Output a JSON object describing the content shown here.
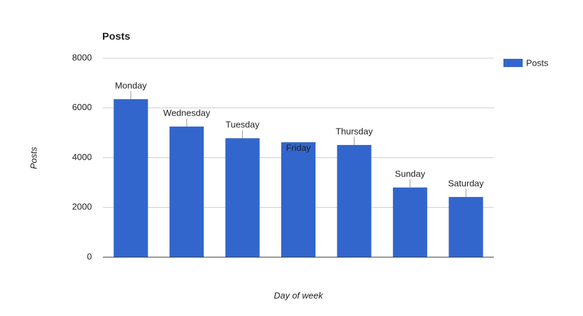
{
  "chart_data": {
    "type": "bar",
    "title": "Posts",
    "x_label": "Day of week",
    "y_label": "Posts",
    "categories": [
      "Monday",
      "Wednesday",
      "Tuesday",
      "Friday",
      "Thursday",
      "Sunday",
      "Saturday"
    ],
    "series": [
      {
        "name": "Posts",
        "color": "#3366cc",
        "values": [
          6350,
          5250,
          4780,
          4620,
          4510,
          2800,
          2420
        ]
      }
    ],
    "ylim": [
      0,
      8000
    ],
    "yticks": [
      0,
      2000,
      4000,
      6000,
      8000
    ],
    "grid": true,
    "legend": "right"
  }
}
